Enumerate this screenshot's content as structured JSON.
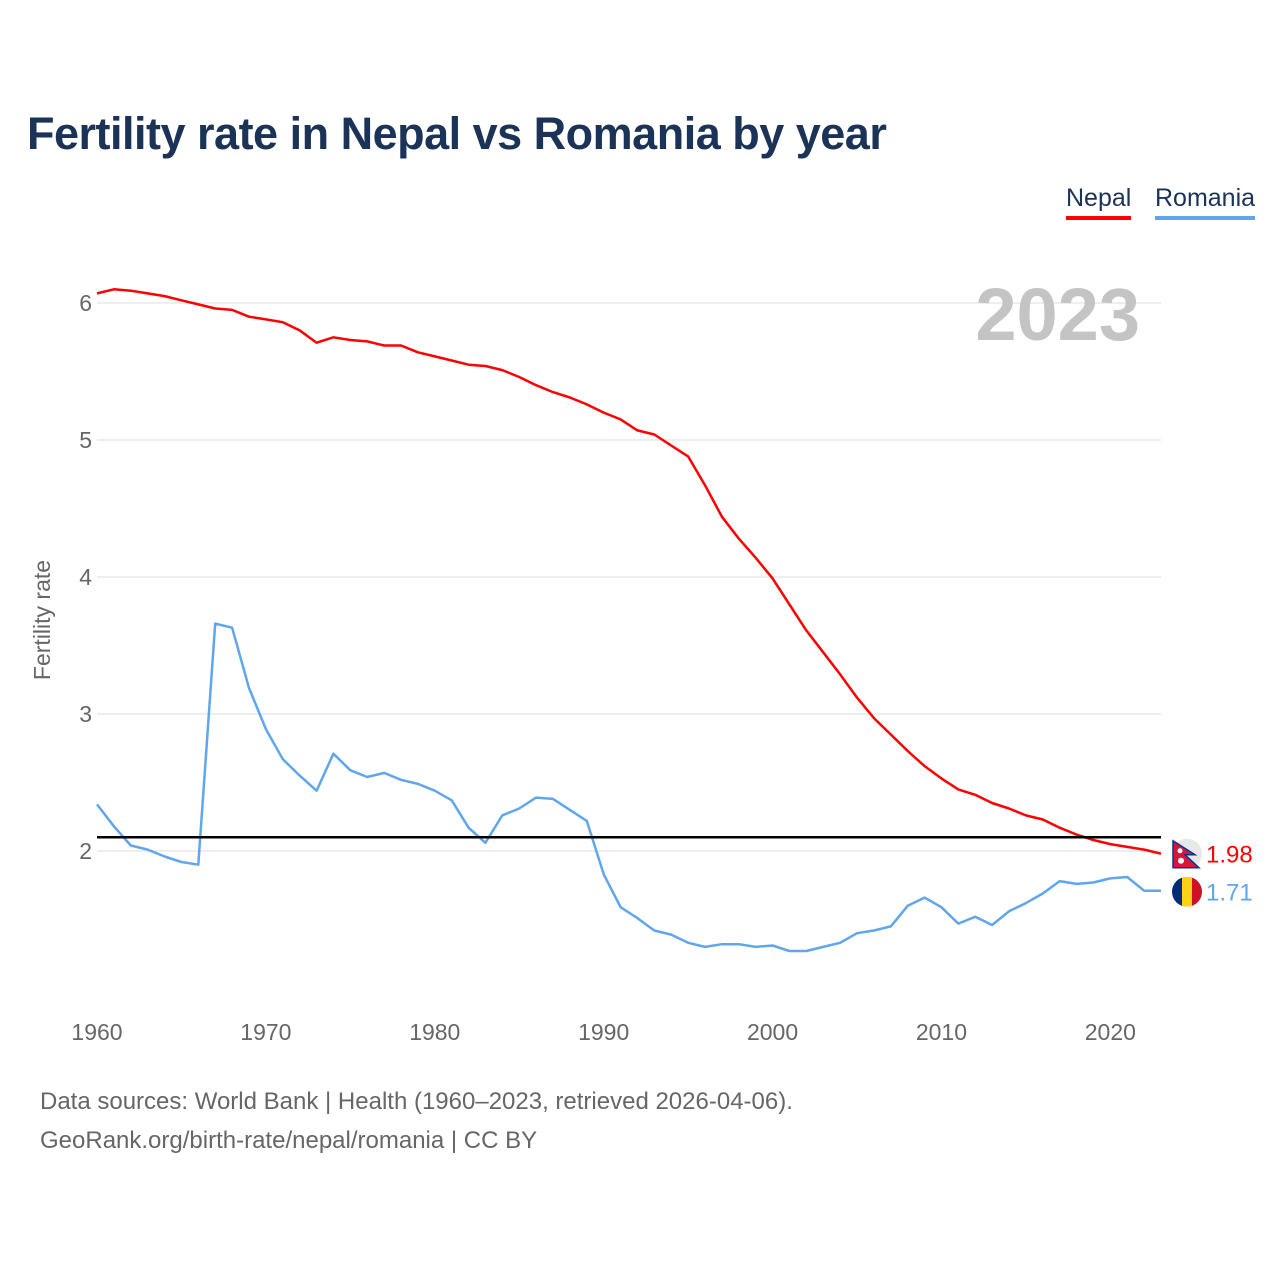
{
  "chart_data": {
    "type": "line",
    "title": "Fertility rate in Nepal vs Romania by year",
    "xlabel": "",
    "ylabel": "Fertility rate",
    "xlim": [
      1960,
      2023
    ],
    "ylim": [
      1.0,
      6.3
    ],
    "xticks": [
      1960,
      1970,
      1980,
      1990,
      2000,
      2010,
      2020
    ],
    "yticks": [
      2,
      3,
      4,
      5,
      6
    ],
    "grid": true,
    "legend": "top-right",
    "year_label": "2023",
    "reference_line": 2.1,
    "x": [
      1960,
      1961,
      1962,
      1963,
      1964,
      1965,
      1966,
      1967,
      1968,
      1969,
      1970,
      1971,
      1972,
      1973,
      1974,
      1975,
      1976,
      1977,
      1978,
      1979,
      1980,
      1981,
      1982,
      1983,
      1984,
      1985,
      1986,
      1987,
      1988,
      1989,
      1990,
      1991,
      1992,
      1993,
      1994,
      1995,
      1996,
      1997,
      1998,
      1999,
      2000,
      2001,
      2002,
      2003,
      2004,
      2005,
      2006,
      2007,
      2008,
      2009,
      2010,
      2011,
      2012,
      2013,
      2014,
      2015,
      2016,
      2017,
      2018,
      2019,
      2020,
      2021,
      2022,
      2023
    ],
    "series": [
      {
        "name": "Nepal",
        "color": "#ff0000",
        "end_label": "1.98",
        "values": [
          6.07,
          6.1,
          6.09,
          6.07,
          6.05,
          6.02,
          5.99,
          5.96,
          5.95,
          5.9,
          5.88,
          5.86,
          5.8,
          5.71,
          5.75,
          5.73,
          5.72,
          5.69,
          5.69,
          5.64,
          5.61,
          5.58,
          5.55,
          5.54,
          5.51,
          5.46,
          5.4,
          5.35,
          5.31,
          5.26,
          5.2,
          5.15,
          5.07,
          5.04,
          4.96,
          4.88,
          4.67,
          4.44,
          4.28,
          4.14,
          3.99,
          3.8,
          3.61,
          3.45,
          3.29,
          3.12,
          2.97,
          2.85,
          2.73,
          2.62,
          2.53,
          2.45,
          2.41,
          2.35,
          2.31,
          2.26,
          2.23,
          2.17,
          2.12,
          2.08,
          2.05,
          2.03,
          2.01,
          1.98
        ]
      },
      {
        "name": "Romania",
        "color": "#5fa6ec",
        "end_label": "1.71",
        "values": [
          2.34,
          2.18,
          2.04,
          2.01,
          1.96,
          1.92,
          1.9,
          3.66,
          3.63,
          3.19,
          2.89,
          2.67,
          2.55,
          2.44,
          2.71,
          2.59,
          2.54,
          2.57,
          2.52,
          2.49,
          2.44,
          2.37,
          2.17,
          2.06,
          2.26,
          2.31,
          2.39,
          2.38,
          2.3,
          2.22,
          1.83,
          1.59,
          1.51,
          1.42,
          1.39,
          1.33,
          1.3,
          1.32,
          1.32,
          1.3,
          1.31,
          1.27,
          1.27,
          1.3,
          1.33,
          1.4,
          1.42,
          1.45,
          1.6,
          1.66,
          1.59,
          1.47,
          1.52,
          1.46,
          1.56,
          1.62,
          1.69,
          1.78,
          1.76,
          1.77,
          1.8,
          1.81,
          1.71,
          1.71
        ]
      }
    ]
  },
  "footer": {
    "sources": "Data sources: World Bank | Health (1960–2023, retrieved 2026-04-06).",
    "credit": "GeoRank.org/birth-rate/nepal/romania | CC BY"
  }
}
